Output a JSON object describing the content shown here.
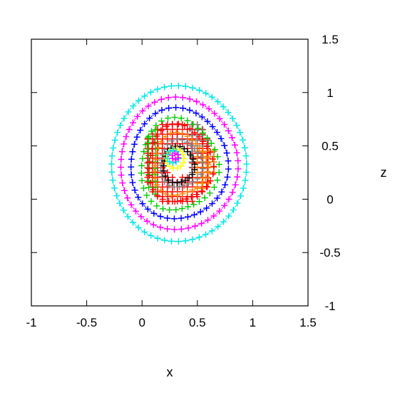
{
  "chart_data": {
    "type": "scatter",
    "marker": "plus",
    "xlabel": "x",
    "ylabel": "z",
    "xlim": [
      -1,
      1.5
    ],
    "ylim": [
      -1,
      1.5
    ],
    "x_ticks": [
      "-1",
      "-0.5",
      "0",
      "0.5",
      "1",
      "1.5"
    ],
    "y_ticks": [
      "-1",
      "-0.5",
      "0",
      "0.5",
      "1",
      "1.5"
    ],
    "grid": false,
    "legend": "none",
    "series": [
      {
        "color": "#00e5e5",
        "rx": 0.61,
        "ry": 0.73,
        "cx": 0.33,
        "cz": 0.33,
        "tri": 0.01,
        "n": 60,
        "dots": true
      },
      {
        "color": "#ff00ff",
        "rx": 0.53,
        "ry": 0.62,
        "cx": 0.33,
        "cz": 0.33,
        "tri": 0.02,
        "n": 52,
        "dots": true
      },
      {
        "color": "#0000ff",
        "rx": 0.44,
        "ry": 0.52,
        "cx": 0.33,
        "cz": 0.33,
        "tri": 0.03,
        "n": 44,
        "dots": true
      },
      {
        "color": "#00cc00",
        "rx": 0.35,
        "ry": 0.43,
        "cx": 0.33,
        "cz": 0.32,
        "tri": 0.06,
        "n": 38,
        "dots": false
      },
      {
        "color": "#ff0000",
        "rx": 0.29,
        "ry": 0.36,
        "cx": 0.34,
        "cz": 0.33,
        "tri": 0.07,
        "n": 34,
        "dots": false
      },
      {
        "color": "#ff8000",
        "rx": 0.24,
        "ry": 0.29,
        "cx": 0.34,
        "cz": 0.32,
        "tri": 0.08,
        "n": 30,
        "dots": false
      },
      {
        "color": "#808080",
        "rx": 0.19,
        "ry": 0.22,
        "cx": 0.35,
        "cz": 0.33,
        "tri": 0.08,
        "n": 26,
        "dots": false
      },
      {
        "color": "#000000",
        "rx": 0.14,
        "ry": 0.17,
        "cx": 0.33,
        "cz": 0.32,
        "tri": 0.06,
        "n": 22,
        "dots": false
      },
      {
        "color": "#ffff00",
        "rx": 0.08,
        "ry": 0.09,
        "cx": 0.3,
        "cz": 0.38,
        "tri": 0.0,
        "n": 14,
        "dots": false
      },
      {
        "color": "#00e5e5",
        "rx": 0.05,
        "ry": 0.06,
        "cx": 0.28,
        "cz": 0.4,
        "tri": 0.0,
        "n": 10,
        "dots": false
      },
      {
        "color": "#ff00ff",
        "rx": 0.03,
        "ry": 0.03,
        "cx": 0.3,
        "cz": 0.4,
        "tri": 0.0,
        "n": 6,
        "dots": false
      }
    ],
    "inner_fill": [
      {
        "color": "#ff0000",
        "x": [
          0.05,
          0.62
        ],
        "z": [
          -0.02,
          0.72
        ],
        "step": 0.045
      },
      {
        "color": "#00cc00",
        "x": [
          0.0,
          0.15
        ],
        "z": [
          0.05,
          0.85
        ],
        "step": 0.06
      },
      {
        "color": "#808080",
        "x": [
          0.45,
          0.7
        ],
        "z": [
          0.25,
          0.8
        ],
        "step": 0.05
      },
      {
        "color": "#ff8000",
        "x": [
          0.5,
          0.65
        ],
        "z": [
          0.1,
          0.45
        ],
        "step": 0.05
      }
    ]
  }
}
